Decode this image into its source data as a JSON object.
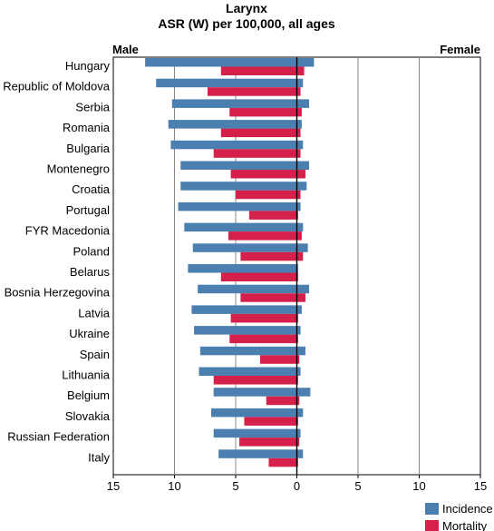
{
  "chart_data": {
    "type": "bar",
    "orientation": "horizontal",
    "layout": "butterfly",
    "title": "Larynx",
    "subtitle": "ASR (W) per 100,000, all ages",
    "left_label": "Male",
    "right_label": "Female",
    "xlim": [
      -15,
      15
    ],
    "tick_values": [
      -15,
      -10,
      -5,
      0,
      5,
      10,
      15
    ],
    "tick_labels": [
      "15",
      "10",
      "5",
      "0",
      "5",
      "10",
      "15"
    ],
    "grid": "vertical",
    "legend_position": "bottom-right",
    "categories": [
      "Hungary",
      "Republic of Moldova",
      "Serbia",
      "Romania",
      "Bulgaria",
      "Montenegro",
      "Croatia",
      "Portugal",
      "FYR Macedonia",
      "Poland",
      "Belarus",
      "Bosnia Herzegovina",
      "Latvia",
      "Ukraine",
      "Spain",
      "Lithuania",
      "Belgium",
      "Slovakia",
      "Russian Federation",
      "Italy"
    ],
    "series": [
      {
        "name": "Incidence",
        "color": "#4a7fb0",
        "male": [
          12.4,
          11.5,
          10.2,
          10.5,
          10.3,
          9.5,
          9.5,
          9.7,
          9.2,
          8.5,
          8.9,
          8.1,
          8.6,
          8.4,
          7.9,
          8.0,
          6.8,
          7.0,
          6.8,
          6.4
        ],
        "female": [
          1.4,
          0.5,
          1.0,
          0.4,
          0.5,
          1.0,
          0.8,
          0.3,
          0.5,
          0.9,
          0.1,
          1.0,
          0.4,
          0.3,
          0.7,
          0.3,
          1.1,
          0.5,
          0.3,
          0.5
        ]
      },
      {
        "name": "Mortality",
        "color": "#d6204c",
        "male": [
          6.2,
          7.3,
          5.5,
          6.2,
          6.8,
          5.4,
          5.0,
          3.9,
          5.6,
          4.6,
          6.2,
          4.6,
          5.4,
          5.5,
          3.0,
          6.8,
          2.5,
          4.3,
          4.7,
          2.3
        ],
        "female": [
          0.6,
          0.3,
          0.4,
          0.3,
          0.3,
          0.7,
          0.3,
          0.1,
          0.4,
          0.5,
          0.1,
          0.7,
          0.1,
          0.1,
          0.2,
          0.1,
          0.2,
          0.1,
          0.2,
          0.1
        ]
      }
    ]
  }
}
